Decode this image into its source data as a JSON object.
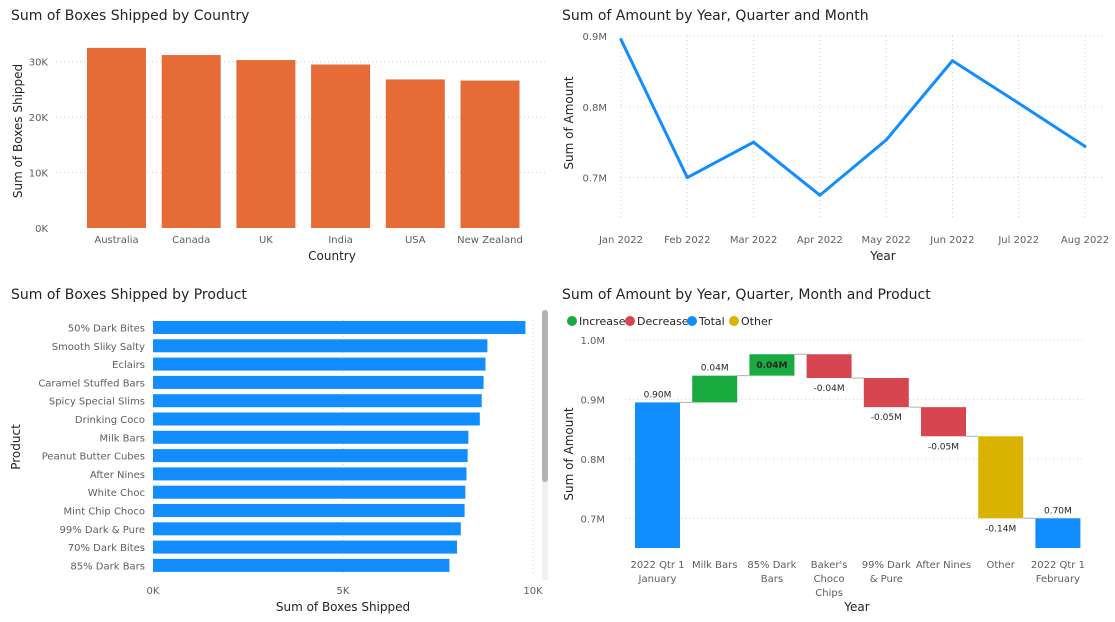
{
  "charts": {
    "country": {
      "title": "Sum of Boxes Shipped by Country",
      "chart_data": {
        "type": "bar",
        "title": "Sum of Boxes Shipped by Country",
        "categories": [
          "Australia",
          "Canada",
          "UK",
          "India",
          "USA",
          "New Zealand"
        ],
        "values": [
          32500,
          31200,
          30300,
          29500,
          26800,
          26600
        ],
        "xlabel": "Country",
        "ylabel": "Sum of Boxes Shipped",
        "ylim": [
          0,
          35000
        ],
        "yticks": [
          0,
          10000,
          20000,
          30000
        ],
        "ytick_labels": [
          "0K",
          "10K",
          "20K",
          "30K"
        ],
        "color": "#E66C37",
        "grid": true
      }
    },
    "amount_line": {
      "title": "Sum of Amount by Year, Quarter and Month",
      "chart_data": {
        "type": "line",
        "title": "Sum of Amount by Year, Quarter and Month",
        "categories": [
          "Jan 2022",
          "Feb 2022",
          "Mar 2022",
          "Apr 2022",
          "May 2022",
          "Jun 2022",
          "Jul 2022",
          "Aug 2022"
        ],
        "values": [
          0.895,
          0.7,
          0.75,
          0.675,
          0.753,
          0.865,
          0.805,
          0.744
        ],
        "xlabel": "Year",
        "ylabel": "Sum of Amount",
        "ylim": [
          0.64,
          0.9
        ],
        "yticks": [
          0.7,
          0.8,
          0.9
        ],
        "ytick_labels": [
          "0.7M",
          "0.8M",
          "0.9M"
        ],
        "color": "#118DFF",
        "grid": true
      }
    },
    "product": {
      "title": "Sum of Boxes Shipped by Product",
      "chart_data": {
        "type": "bar",
        "orientation": "horizontal",
        "title": "Sum of Boxes Shipped by Product",
        "categories": [
          "50% Dark Bites",
          "Smooth Sliky Salty",
          "Eclairs",
          "Caramel Stuffed Bars",
          "Spicy Special Slims",
          "Drinking Coco",
          "Milk Bars",
          "Peanut Butter Cubes",
          "After Nines",
          "White Choc",
          "Mint Chip Choco",
          "99% Dark & Pure",
          "70% Dark Bites",
          "85% Dark Bars"
        ],
        "values": [
          9800,
          8800,
          8750,
          8700,
          8650,
          8600,
          8300,
          8280,
          8250,
          8220,
          8200,
          8100,
          8000,
          7800
        ],
        "xlabel": "Sum of Boxes Shipped",
        "ylabel": "Product",
        "xlim": [
          0,
          10000
        ],
        "xticks": [
          0,
          5000,
          10000
        ],
        "xtick_labels": [
          "0K",
          "5K",
          "10K"
        ],
        "color": "#118DFF",
        "grid": true
      }
    },
    "waterfall": {
      "title": "Sum of Amount by Year, Quarter, Month and Product",
      "legend": [
        {
          "label": "Increase",
          "color": "#1AAB40"
        },
        {
          "label": "Decrease",
          "color": "#D64550"
        },
        {
          "label": "Total",
          "color": "#118DFF"
        },
        {
          "label": "Other",
          "color": "#D9B300"
        }
      ],
      "chart_data": {
        "type": "waterfall",
        "title": "Sum of Amount by Year, Quarter, Month and Product",
        "categories": [
          "2022 Qtr 1 January",
          "Milk Bars",
          "85% Dark Bars",
          "Baker's Choco Chips",
          "99% Dark & Pure",
          "After Nines",
          "Other",
          "2022 Qtr 1 February"
        ],
        "category_lines": [
          [
            "2022 Qtr 1",
            "January"
          ],
          [
            "Milk Bars"
          ],
          [
            "85% Dark",
            "Bars"
          ],
          [
            "Baker's",
            "Choco",
            "Chips"
          ],
          [
            "99% Dark",
            "& Pure"
          ],
          [
            "After Nines"
          ],
          [
            "Other"
          ],
          [
            "2022 Qtr 1",
            "February"
          ]
        ],
        "steps": [
          {
            "kind": "total",
            "start": 0.65,
            "end": 0.895,
            "label": "0.90M"
          },
          {
            "kind": "increase",
            "start": 0.895,
            "end": 0.94,
            "label": "0.04M"
          },
          {
            "kind": "increase",
            "start": 0.94,
            "end": 0.976,
            "label": "0.04M"
          },
          {
            "kind": "decrease",
            "start": 0.976,
            "end": 0.936,
            "label": "-0.04M"
          },
          {
            "kind": "decrease",
            "start": 0.936,
            "end": 0.887,
            "label": "-0.05M"
          },
          {
            "kind": "decrease",
            "start": 0.887,
            "end": 0.838,
            "label": "-0.05M"
          },
          {
            "kind": "other",
            "start": 0.838,
            "end": 0.7,
            "label": "-0.14M"
          },
          {
            "kind": "total",
            "start": 0.65,
            "end": 0.7,
            "label": "0.70M"
          }
        ],
        "xlabel": "Year",
        "ylabel": "Sum of Amount",
        "ylim": [
          0.65,
          1.0
        ],
        "yticks": [
          0.7,
          0.8,
          0.9,
          1.0
        ],
        "ytick_labels": [
          "0.7M",
          "0.8M",
          "0.9M",
          "1.0M"
        ],
        "colors": {
          "increase": "#1AAB40",
          "decrease": "#D64550",
          "total": "#118DFF",
          "other": "#D9B300"
        }
      }
    }
  }
}
